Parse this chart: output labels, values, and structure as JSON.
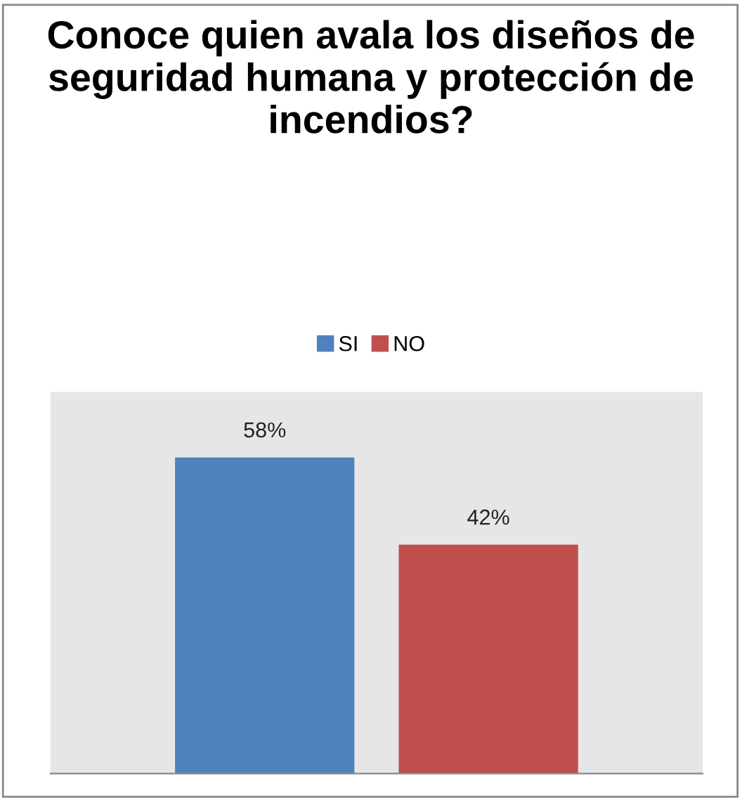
{
  "chart_data": {
    "type": "bar",
    "title": "Conoce quien avala los diseños de seguridad humana y protección de incendios?",
    "categories": [
      null
    ],
    "series": [
      {
        "name": "SI",
        "color": "#4f81bd",
        "values": [
          58
        ],
        "value_labels": [
          "58%"
        ]
      },
      {
        "name": "NO",
        "color": "#c0504d",
        "values": [
          42
        ],
        "value_labels": [
          "42%"
        ]
      }
    ],
    "ylim": [
      0,
      70
    ],
    "legend": "top",
    "grid": false
  }
}
